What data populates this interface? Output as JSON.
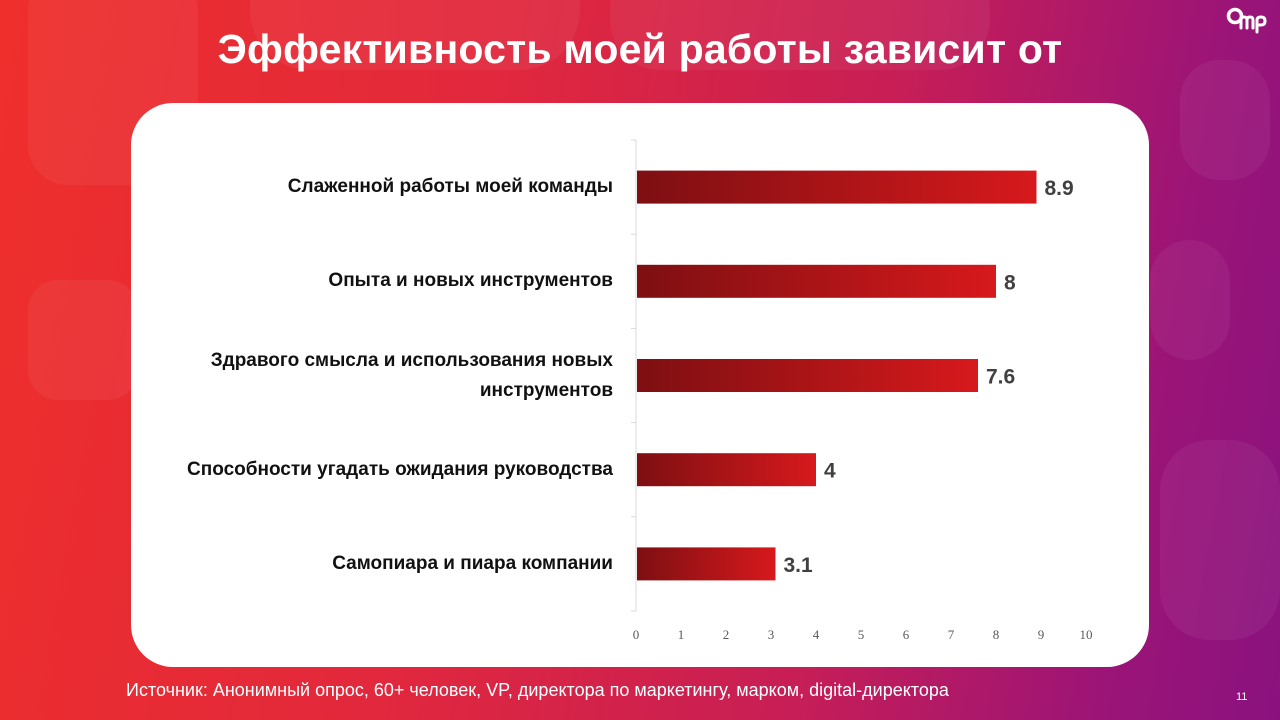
{
  "slide": {
    "title": "Эффективность моей работы зависит от",
    "source": "Источник: Анонимный опрос, 60+ человек, VP, директора по маркетингу, марком, digital-директора",
    "page_number": "11",
    "logo_text": "OMP"
  },
  "colors": {
    "bar_dark": "#7d0f12",
    "bar_light": "#d7191c",
    "value_text": "#404040",
    "axis": "#d9d9d9",
    "tick_text": "#595959"
  },
  "chart_data": {
    "type": "bar",
    "orientation": "horizontal",
    "title": "Эффективность моей работы зависит от",
    "categories": [
      "Слаженной работы моей команды",
      "Опыта и новых инструментов",
      "Здравого смысла и использования новых инструментов",
      "Способности угадать ожидания руководства",
      "Самопиара и пиара компании"
    ],
    "values": [
      8.9,
      8,
      7.6,
      4,
      3.1
    ],
    "value_labels": [
      "8.9",
      "8",
      "7.6",
      "4",
      "3.1"
    ],
    "xlim": [
      0,
      10
    ],
    "x_ticks": [
      0,
      1,
      2,
      3,
      4,
      5,
      6,
      7,
      8,
      9,
      10
    ],
    "xlabel": "",
    "ylabel": "",
    "grid": false,
    "legend": "none"
  }
}
